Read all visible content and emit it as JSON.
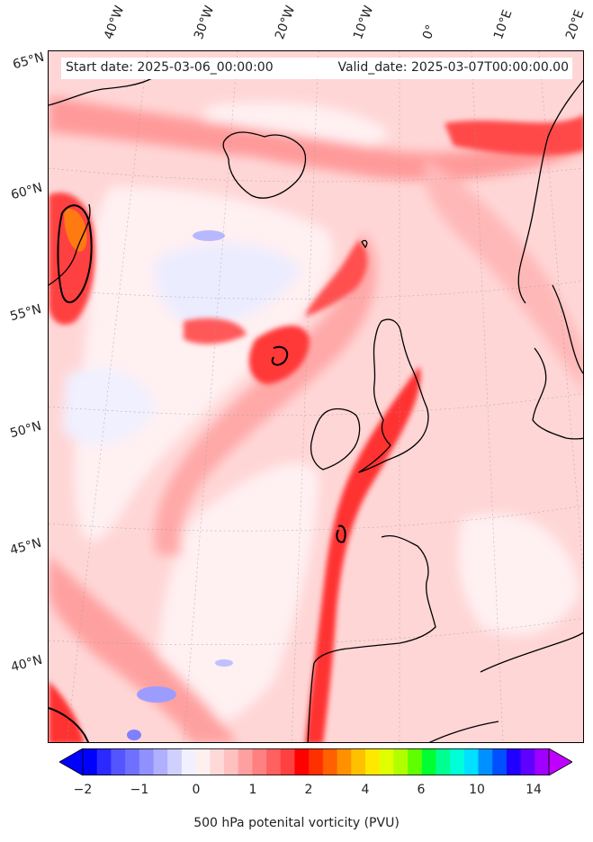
{
  "map": {
    "start_date": "Start date: 2025-03-06_00:00:00",
    "valid_date": "Valid_date: 2025-03-07T00:00:00.00",
    "longitude_labels": [
      "40°W",
      "30°W",
      "20°W",
      "10°W",
      "0°",
      "10°E",
      "20°E"
    ],
    "latitude_labels": [
      "65°N",
      "60°N",
      "55°N",
      "50°N",
      "45°N",
      "40°N"
    ],
    "projection": "Lambert conformal (North Atlantic / Europe)",
    "field": "500 hPa potential vorticity",
    "contour_level_pvu": 2,
    "colors": {
      "land_outline": "#000000",
      "pv_low": "#e8e8ff",
      "pv_near_zero": "#fff0f0",
      "pv_moderate": "#ffb0b0",
      "pv_high": "#ff2020",
      "pv_very_high": "#ff8000",
      "negative_blue": "#8080ff"
    }
  },
  "colorbar": {
    "title": "500 hPa potenital vorticity (PVU)",
    "tick_labels": [
      "−2",
      "−1",
      "0",
      "1",
      "2",
      "4",
      "6",
      "10",
      "14"
    ],
    "colors": [
      "#0000ff",
      "#2a2aff",
      "#5555ff",
      "#7070ff",
      "#9090ff",
      "#b0b0ff",
      "#d0d0ff",
      "#f0f0ff",
      "#fff0f0",
      "#ffd8d8",
      "#ffc0c0",
      "#ffa0a0",
      "#ff8080",
      "#ff6060",
      "#ff4040",
      "#ff0000",
      "#ff3000",
      "#ff6000",
      "#ff9000",
      "#ffc000",
      "#ffe800",
      "#e0ff00",
      "#b0ff00",
      "#60ff00",
      "#00ff30",
      "#00ff90",
      "#00ffd8",
      "#00e0ff",
      "#0090ff",
      "#0050ff",
      "#2000ff",
      "#6000ff",
      "#a000ff"
    ],
    "extend_low_color": "#0000ff",
    "extend_high_color": "#c000ff"
  }
}
